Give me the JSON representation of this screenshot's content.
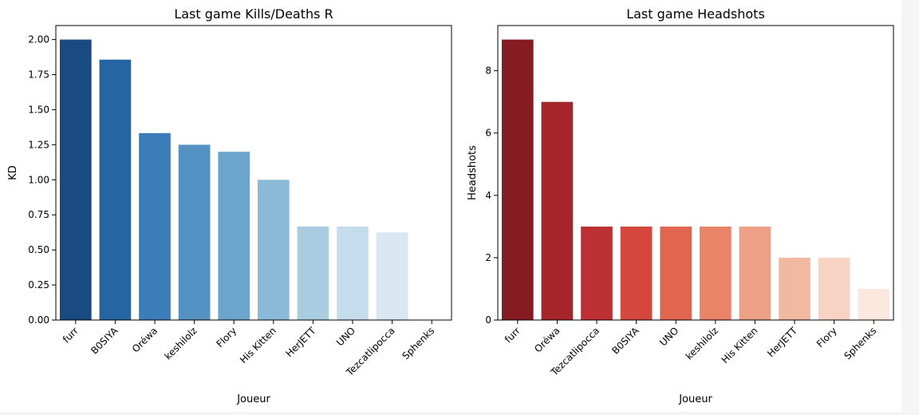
{
  "chart_data": [
    {
      "type": "bar",
      "title": "Last game Kills/Deaths R",
      "xlabel": "Joueur",
      "ylabel": "KD",
      "ylim": [
        0,
        2.1
      ],
      "yticks": [
        "0.00",
        "0.25",
        "0.50",
        "0.75",
        "1.00",
        "1.25",
        "1.50",
        "1.75",
        "2.00"
      ],
      "categories": [
        "furr",
        "B0SIYA",
        "Oréwa",
        "keshilolz",
        "Flory",
        "His Kitten",
        "HerJETT",
        "UNO",
        "Tezcatlipocca",
        "Sphenks"
      ],
      "values": [
        2.0,
        1.857,
        1.333,
        1.25,
        1.2,
        1.0,
        0.667,
        0.667,
        0.625,
        0.0
      ],
      "colors": [
        "#1a4a82",
        "#2565a3",
        "#3a7db8",
        "#5392c2",
        "#6ba5cd",
        "#8bbad8",
        "#aacce1",
        "#c5dcec",
        "#d9e7f3",
        "#ecf3fa"
      ],
      "grid": false
    },
    {
      "type": "bar",
      "title": "Last game Headshots",
      "xlabel": "Joueur",
      "ylabel": "Headshots",
      "ylim": [
        0,
        9.45
      ],
      "yticks": [
        "0",
        "2",
        "4",
        "6",
        "8"
      ],
      "categories": [
        "furr",
        "Oréwa",
        "Tezcatlipocca",
        "B0SIYA",
        "UNO",
        "keshilolz",
        "His Kitten",
        "HerJETT",
        "Flory",
        "Sphenks"
      ],
      "values": [
        9,
        7,
        3,
        3,
        3,
        3,
        3,
        2,
        2,
        1
      ],
      "colors": [
        "#841c22",
        "#a4262b",
        "#bc3034",
        "#d5463c",
        "#e0664f",
        "#e98468",
        "#eda085",
        "#f1b9a2",
        "#f6d3c2",
        "#fbe8df"
      ],
      "grid": false
    }
  ]
}
